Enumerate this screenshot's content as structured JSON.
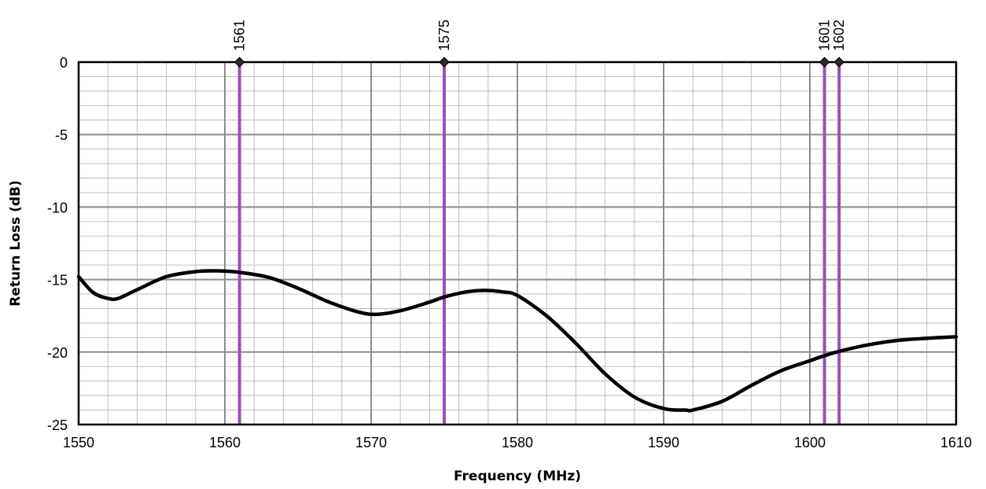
{
  "chart_data": {
    "type": "line",
    "title": "",
    "xlabel": "Frequency (MHz)",
    "ylabel": "Return Loss (dB)",
    "xlim": [
      1550,
      1610
    ],
    "ylim": [
      -25,
      0
    ],
    "x_ticks": [
      1550,
      1560,
      1570,
      1580,
      1590,
      1600,
      1610
    ],
    "y_ticks": [
      0,
      -5,
      -10,
      -15,
      -20,
      -25
    ],
    "x_tick_labels": [
      "1550",
      "1560",
      "1570",
      "1580",
      "1590",
      "1600",
      "1610"
    ],
    "y_tick_labels": [
      "0",
      "-5",
      "-10",
      "-15",
      "-20",
      "-25"
    ],
    "grid": true,
    "legend": "none",
    "series": [
      {
        "color": "#000000",
        "x": [
          1550,
          1551,
          1552,
          1552.7,
          1554,
          1556,
          1558,
          1559.5,
          1561,
          1563,
          1565,
          1567,
          1569,
          1570.3,
          1572,
          1574,
          1575,
          1576.5,
          1577.8,
          1579,
          1580,
          1582,
          1584,
          1586,
          1588,
          1590,
          1591.5,
          1592,
          1594,
          1596,
          1598,
          1600,
          1601,
          1602,
          1604,
          1606,
          1608,
          1610
        ],
        "y": [
          -14.8,
          -15.9,
          -16.3,
          -16.3,
          -15.7,
          -14.8,
          -14.45,
          -14.4,
          -14.5,
          -14.85,
          -15.6,
          -16.5,
          -17.2,
          -17.4,
          -17.15,
          -16.55,
          -16.2,
          -15.85,
          -15.75,
          -15.85,
          -16.1,
          -17.5,
          -19.4,
          -21.5,
          -23.1,
          -23.9,
          -24.0,
          -24.0,
          -23.4,
          -22.3,
          -21.3,
          -20.6,
          -20.25,
          -19.95,
          -19.5,
          -19.2,
          -19.05,
          -18.95
        ]
      }
    ],
    "markers": [
      {
        "x": 1561,
        "y": 0,
        "label": "1561"
      },
      {
        "x": 1575,
        "y": 0,
        "label": "1575"
      },
      {
        "x": 1601,
        "y": 0,
        "label": "1601"
      },
      {
        "x": 1602,
        "y": 0,
        "label": "1602"
      }
    ],
    "marker_line_color": "#9b4fb5",
    "marker_point_color": "#2a2a2a",
    "major_grid_color": "#8c8c8c",
    "minor_grid_color": "#bfbfbf"
  }
}
